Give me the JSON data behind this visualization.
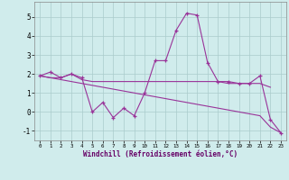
{
  "x": [
    0,
    1,
    2,
    3,
    4,
    5,
    6,
    7,
    8,
    9,
    10,
    11,
    12,
    13,
    14,
    15,
    16,
    17,
    18,
    19,
    20,
    21,
    22,
    23
  ],
  "line1": [
    1.9,
    2.1,
    1.8,
    2.0,
    1.8,
    0.0,
    0.5,
    -0.3,
    0.2,
    -0.2,
    1.0,
    2.7,
    2.7,
    4.3,
    5.2,
    5.1,
    2.6,
    1.6,
    1.6,
    1.5,
    1.5,
    1.9,
    -0.4,
    -1.1
  ],
  "line2": [
    1.9,
    1.8,
    1.8,
    2.0,
    1.7,
    1.6,
    1.6,
    1.6,
    1.6,
    1.6,
    1.6,
    1.6,
    1.6,
    1.6,
    1.6,
    1.6,
    1.6,
    1.6,
    1.5,
    1.5,
    1.5,
    1.5,
    1.3,
    null
  ],
  "line3": [
    1.9,
    1.8,
    1.7,
    1.6,
    1.5,
    1.4,
    1.3,
    1.2,
    1.1,
    1.0,
    0.9,
    0.8,
    0.7,
    0.6,
    0.5,
    0.4,
    0.3,
    0.2,
    0.1,
    0.0,
    -0.1,
    -0.2,
    -0.8,
    -1.1
  ],
  "color": "#993399",
  "bg_color": "#d0ecec",
  "grid_color": "#aacccc",
  "xlabel": "Windchill (Refroidissement éolien,°C)",
  "ylim": [
    -1.5,
    5.8
  ],
  "xlim": [
    -0.5,
    23.5
  ],
  "yticks": [
    -1,
    0,
    1,
    2,
    3,
    4,
    5
  ],
  "xticks": [
    0,
    1,
    2,
    3,
    4,
    5,
    6,
    7,
    8,
    9,
    10,
    11,
    12,
    13,
    14,
    15,
    16,
    17,
    18,
    19,
    20,
    21,
    22,
    23
  ]
}
